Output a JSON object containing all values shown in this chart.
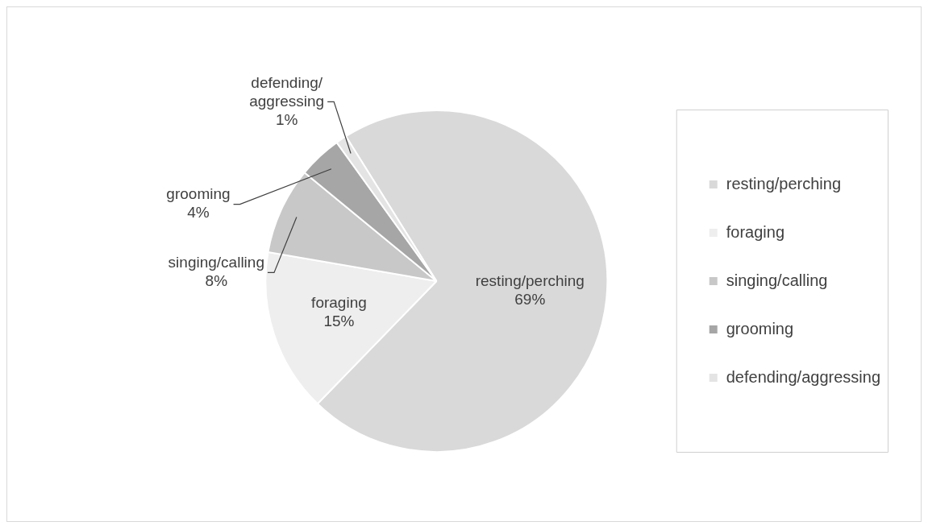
{
  "chart_data": {
    "type": "pie",
    "categories": [
      "resting/perching",
      "foraging",
      "singing/calling",
      "grooming",
      "defending/aggressing"
    ],
    "values": [
      69,
      15,
      8,
      4,
      1
    ],
    "value_labels": [
      "69%",
      "15%",
      "8%",
      "4%",
      "1%"
    ],
    "colors": [
      "#d9d9d9",
      "#eeeeee",
      "#c8c8c8",
      "#a6a6a6",
      "#e4e4e4"
    ],
    "data_labels": true,
    "legend": "right"
  }
}
